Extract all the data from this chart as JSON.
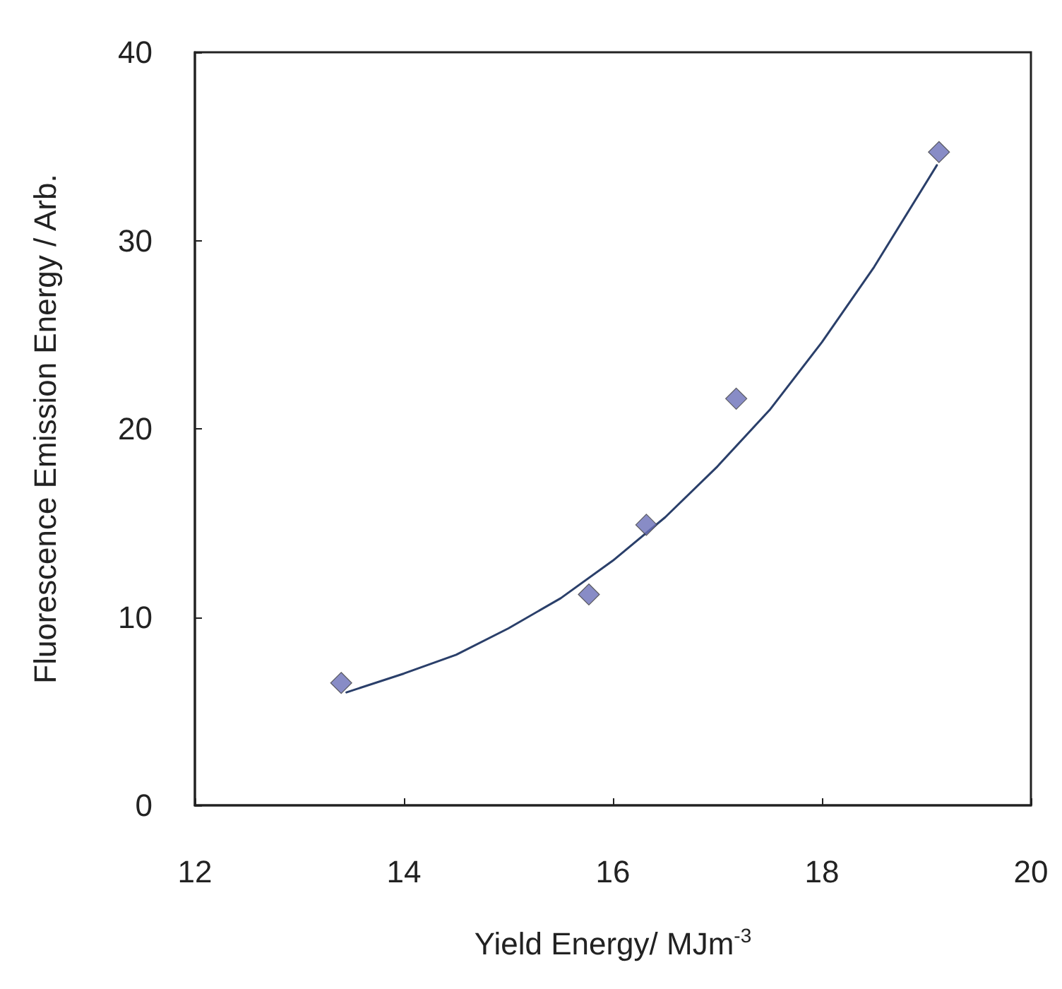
{
  "chart_data": {
    "type": "scatter",
    "xlabel": "Yield Energy/ MJm$^{-3}$",
    "ylabel": "Fluorescence Emission Energy / Arb.",
    "xlim": [
      12,
      20
    ],
    "xticks": [
      12,
      14,
      16,
      18,
      20
    ],
    "ylim": [
      0,
      40
    ],
    "yticks": [
      0,
      10,
      20,
      30,
      40
    ],
    "grid": false,
    "marker": "diamond",
    "x": [
      13.4,
      15.77,
      16.32,
      17.18,
      19.12
    ],
    "series": [
      {
        "color": "#6a6fb8",
        "values": [
          6.5,
          11.2,
          14.9,
          21.6,
          34.7
        ]
      },
      {
        "type": "line",
        "marker": "none",
        "color": "#2a3f6a",
        "x": [
          13.45,
          14,
          14.5,
          15,
          15.5,
          16,
          16.5,
          17,
          17.5,
          18,
          18.5,
          19.1
        ],
        "values": [
          6.0,
          7.0,
          8.0,
          9.4,
          11.0,
          13.0,
          15.3,
          18.0,
          21.0,
          24.6,
          28.6,
          34.0
        ]
      }
    ]
  }
}
